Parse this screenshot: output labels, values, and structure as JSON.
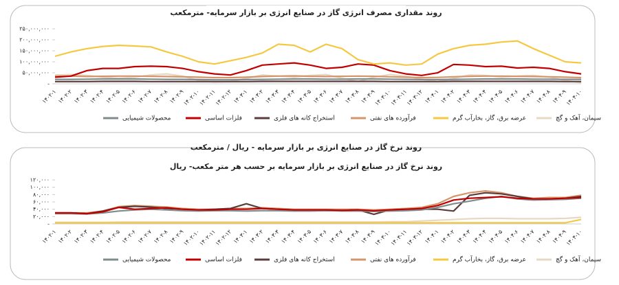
{
  "chart_data": [
    {
      "type": "line",
      "title": "روند مقداری مصرف انرژی گاز در صنایع انرژی بر بازار سرمایه- مترمکعب",
      "categories": [
        "۱۴۰۲-۱",
        "۱۴۰۲-۲",
        "۱۴۰۲-۳",
        "۱۴۰۲-۴",
        "۱۴۰۲-۵",
        "۱۴۰۲-۶",
        "۱۴۰۲-۷",
        "۱۴۰۲-۸",
        "۱۴۰۲-۹",
        "۱۴۰۲-۱۰",
        "۱۴۰۲-۱۱",
        "۱۴۰۲-۱۲",
        "۱۴۰۳-۱",
        "۱۴۰۳-۲",
        "۱۴۰۳-۳",
        "۱۴۰۳-۴",
        "۱۴۰۳-۵",
        "۱۴۰۳-۶",
        "۱۴۰۳-۷",
        "۱۴۰۳-۸",
        "۱۴۰۳-۹",
        "۱۴۰۳-۱۰",
        "۱۴۰۳-۱۱",
        "۱۴۰۳-۱۲",
        "۱۴۰۴-۱",
        "۱۴۰۴-۲",
        "۱۴۰۴-۳",
        "۱۴۰۴-۴",
        "۱۴۰۴-۵",
        "۱۴۰۴-۶",
        "۱۴۰۴-۷",
        "۱۴۰۴-۸",
        "۱۴۰۴-۹",
        "۱۴۰۴-۱۰"
      ],
      "ylim": [
        0,
        250000000
      ],
      "yticks": [
        {
          "value": 0,
          "label": "-"
        },
        {
          "value": 50000000,
          "label": "۵۰,۰۰۰,۰۰۰"
        },
        {
          "value": 100000000,
          "label": "۱۰۰,۰۰۰,۰۰۰"
        },
        {
          "value": 150000000,
          "label": "۱۵۰,۰۰۰,۰۰۰"
        },
        {
          "value": 200000000,
          "label": "۲۰۰,۰۰۰,۰۰۰"
        },
        {
          "value": 250000000,
          "label": "۲۵۰,۰۰۰,۰۰۰"
        }
      ],
      "series": [
        {
          "name": "محصولات شیمیایی",
          "color": "#7f8c8d",
          "values": [
            20000000,
            20000000,
            21000000,
            22000000,
            22000000,
            22000000,
            21000000,
            20000000,
            20000000,
            19000000,
            18000000,
            18000000,
            19000000,
            20000000,
            21000000,
            22000000,
            22000000,
            21000000,
            21000000,
            22000000,
            22000000,
            21000000,
            20000000,
            19000000,
            19000000,
            20000000,
            21000000,
            22000000,
            22000000,
            22000000,
            21000000,
            21000000,
            20000000,
            20000000
          ]
        },
        {
          "name": "فلزات اساسی",
          "color": "#c00000",
          "values": [
            30000000,
            35000000,
            60000000,
            70000000,
            70000000,
            78000000,
            80000000,
            78000000,
            70000000,
            55000000,
            45000000,
            40000000,
            60000000,
            85000000,
            90000000,
            95000000,
            85000000,
            70000000,
            75000000,
            90000000,
            85000000,
            60000000,
            45000000,
            38000000,
            50000000,
            88000000,
            85000000,
            78000000,
            80000000,
            72000000,
            75000000,
            70000000,
            55000000,
            45000000
          ]
        },
        {
          "name": "استخراج کانه های فلزی",
          "color": "#5b3b3b",
          "values": [
            10000000,
            10000000,
            10000000,
            11000000,
            11000000,
            11000000,
            10000000,
            10000000,
            10000000,
            10000000,
            10000000,
            10000000,
            10000000,
            11000000,
            11000000,
            11000000,
            11000000,
            11000000,
            11000000,
            11000000,
            11000000,
            10000000,
            10000000,
            10000000,
            10000000,
            11000000,
            11000000,
            11000000,
            11000000,
            11000000,
            11000000,
            11000000,
            10000000,
            10000000
          ]
        },
        {
          "name": "فرآورده های نفتی",
          "color": "#d4956b",
          "values": [
            35000000,
            35000000,
            33000000,
            34000000,
            35000000,
            35000000,
            34000000,
            33000000,
            32000000,
            30000000,
            28000000,
            28000000,
            30000000,
            33000000,
            35000000,
            36000000,
            34000000,
            33000000,
            34000000,
            35000000,
            34000000,
            32000000,
            30000000,
            28000000,
            29000000,
            32000000,
            34000000,
            35000000,
            35000000,
            34000000,
            33000000,
            32000000,
            30000000,
            28000000
          ]
        },
        {
          "name": "عرضه برق، گاز، بخارآب گرم",
          "color": "#f5c842",
          "values": [
            125000000,
            145000000,
            160000000,
            170000000,
            175000000,
            172000000,
            168000000,
            145000000,
            125000000,
            100000000,
            90000000,
            105000000,
            120000000,
            140000000,
            180000000,
            175000000,
            145000000,
            180000000,
            160000000,
            110000000,
            90000000,
            95000000,
            85000000,
            90000000,
            135000000,
            160000000,
            175000000,
            180000000,
            190000000,
            195000000,
            160000000,
            130000000,
            100000000,
            95000000
          ]
        },
        {
          "name": "سیمان، آهک و گچ",
          "color": "#e6d8c3",
          "values": [
            40000000,
            42000000,
            38000000,
            30000000,
            25000000,
            30000000,
            40000000,
            45000000,
            35000000,
            15000000,
            8000000,
            10000000,
            25000000,
            40000000,
            35000000,
            30000000,
            38000000,
            42000000,
            25000000,
            10000000,
            30000000,
            42000000,
            35000000,
            20000000,
            10000000,
            25000000,
            40000000,
            38000000,
            30000000,
            35000000,
            38000000,
            30000000,
            15000000,
            5000000
          ]
        }
      ]
    },
    {
      "type": "line",
      "title": "روند نرخ گاز در صنایع انرژی بر بازار سرمایه - ریال / مترمکعب",
      "subtitle": "روند نرخ گاز در صنایع انرژی بر بازار سرمایه بر حسب هر متر مکعب- ریال",
      "categories": [
        "۱۴۰۲-۱",
        "۱۴۰۲-۲",
        "۱۴۰۲-۳",
        "۱۴۰۲-۴",
        "۱۴۰۲-۵",
        "۱۴۰۲-۶",
        "۱۴۰۲-۷",
        "۱۴۰۲-۸",
        "۱۴۰۲-۹",
        "۱۴۰۲-۱۰",
        "۱۴۰۲-۱۱",
        "۱۴۰۲-۱۲",
        "۱۴۰۳-۱",
        "۱۴۰۳-۲",
        "۱۴۰۳-۳",
        "۱۴۰۳-۴",
        "۱۴۰۳-۵",
        "۱۴۰۳-۶",
        "۱۴۰۳-۷",
        "۱۴۰۳-۸",
        "۱۴۰۳-۹",
        "۱۴۰۳-۱۰",
        "۱۴۰۳-۱۱",
        "۱۴۰۳-۱۲",
        "۱۴۰۴-۱",
        "۱۴۰۴-۲",
        "۱۴۰۴-۳",
        "۱۴۰۴-۴",
        "۱۴۰۴-۵",
        "۱۴۰۴-۶",
        "۱۴۰۴-۷",
        "۱۴۰۴-۸",
        "۱۴۰۴-۹",
        "۱۴۰۴-۱۰"
      ],
      "ylim": [
        0,
        120000
      ],
      "yticks": [
        {
          "value": 0,
          "label": "-"
        },
        {
          "value": 20000,
          "label": "۲۰,۰۰۰"
        },
        {
          "value": 40000,
          "label": "۴۰,۰۰۰"
        },
        {
          "value": 60000,
          "label": "۶۰,۰۰۰"
        },
        {
          "value": 80000,
          "label": "۸۰,۰۰۰"
        },
        {
          "value": 100000,
          "label": "۱۰۰,۰۰۰"
        },
        {
          "value": 120000,
          "label": "۱۲۰,۰۰۰"
        }
      ],
      "series": [
        {
          "name": "محصولات شیمیایی",
          "color": "#7f8c8d",
          "values": [
            28000,
            28000,
            27000,
            30000,
            35000,
            38000,
            40000,
            38000,
            36000,
            35000,
            36000,
            36000,
            35000,
            36000,
            36000,
            35000,
            35000,
            36000,
            35000,
            35000,
            34000,
            35000,
            36000,
            38000,
            45000,
            55000,
            62000,
            70000,
            75000,
            68000,
            65000,
            66000,
            67000,
            70000
          ]
        },
        {
          "name": "فلزات اساسی",
          "color": "#c00000",
          "values": [
            30000,
            30000,
            28000,
            33000,
            45000,
            40000,
            42000,
            44000,
            40000,
            38000,
            38000,
            40000,
            40000,
            42000,
            40000,
            38000,
            38000,
            38000,
            37000,
            38000,
            36000,
            38000,
            40000,
            42000,
            50000,
            65000,
            70000,
            72000,
            74000,
            70000,
            68000,
            68000,
            70000,
            72000
          ]
        },
        {
          "name": "استخراج کانه های فلزی",
          "color": "#5b3b3b",
          "values": [
            30000,
            30000,
            28000,
            35000,
            45000,
            48000,
            46000,
            42000,
            40000,
            38000,
            40000,
            42000,
            55000,
            42000,
            40000,
            38000,
            38000,
            38000,
            37000,
            38000,
            26000,
            38000,
            40000,
            40000,
            40000,
            35000,
            78000,
            85000,
            82000,
            75000,
            68000,
            68000,
            70000,
            75000
          ]
        },
        {
          "name": "فرآورده های نفتی",
          "color": "#d4956b",
          "values": [
            30000,
            30000,
            30000,
            35000,
            47000,
            50000,
            48000,
            46000,
            42000,
            40000,
            40000,
            42000,
            42000,
            44000,
            42000,
            40000,
            40000,
            40000,
            40000,
            40000,
            38000,
            40000,
            42000,
            45000,
            55000,
            75000,
            85000,
            90000,
            85000,
            75000,
            70000,
            72000,
            72000,
            78000
          ]
        },
        {
          "name": "عرضه برق، گاز، بخارآب گرم",
          "color": "#f5c842",
          "values": [
            3000,
            3000,
            3000,
            3000,
            3000,
            3000,
            3000,
            3000,
            3000,
            3000,
            3000,
            3000,
            3000,
            3000,
            3000,
            3000,
            3000,
            3000,
            3000,
            3000,
            3000,
            3000,
            3000,
            3000,
            3000,
            3000,
            3000,
            3000,
            3000,
            3000,
            3000,
            3000,
            3000,
            12000
          ]
        },
        {
          "name": "سیمان، آهک و گچ",
          "color": "#e6d8c3",
          "values": [
            4000,
            4000,
            4000,
            4000,
            5000,
            5000,
            5000,
            5000,
            5000,
            5000,
            5000,
            5000,
            5000,
            5000,
            5000,
            5000,
            5000,
            5000,
            5000,
            5000,
            5000,
            6000,
            6000,
            8000,
            10000,
            12000,
            14000,
            15000,
            15000,
            14000,
            14000,
            14000,
            15000,
            18000
          ]
        }
      ]
    }
  ]
}
